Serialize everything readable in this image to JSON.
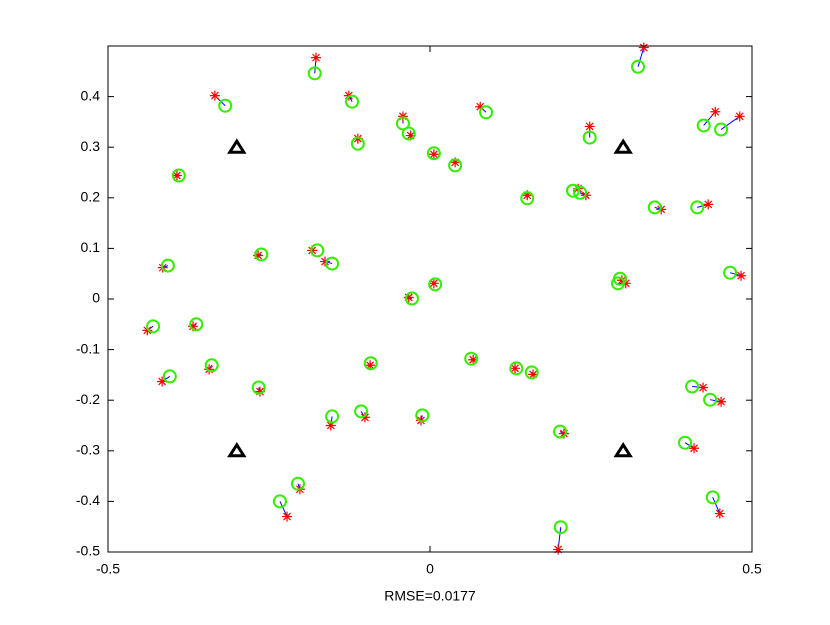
{
  "chart_data": {
    "type": "scatter",
    "xlabel": "RMSE=0.0177",
    "xlim": [
      -0.5,
      0.5
    ],
    "ylim": [
      -0.5,
      0.5
    ],
    "xticks": [
      -0.5,
      0,
      0.5
    ],
    "yticks": [
      -0.5,
      -0.4,
      -0.3,
      -0.2,
      -0.1,
      0,
      0.1,
      0.2,
      0.3,
      0.4
    ],
    "link_color": "#0000ff",
    "series": [
      {
        "marker": "star",
        "color": "#ff0000",
        "x": [
          -0.334,
          -0.177,
          -0.126,
          -0.112,
          -0.042,
          -0.03,
          0.006,
          0.039,
          0.078,
          0.151,
          0.23,
          0.242,
          0.248,
          0.332,
          0.359,
          0.432,
          0.443,
          0.481,
          0.483,
          0.304,
          0.298,
          -0.393,
          -0.415,
          -0.267,
          -0.183,
          -0.163,
          -0.033,
          0.006,
          -0.439,
          -0.368,
          -0.416,
          -0.343,
          -0.264,
          -0.093,
          -0.154,
          -0.101,
          -0.014,
          0.067,
          0.132,
          0.16,
          0.208,
          0.199,
          0.424,
          0.452,
          0.41,
          0.45,
          -0.222,
          -0.202
        ],
        "values": [
          0.402,
          0.477,
          0.402,
          0.317,
          0.361,
          0.323,
          0.286,
          0.27,
          0.38,
          0.205,
          0.218,
          0.205,
          0.341,
          0.497,
          0.177,
          0.187,
          0.37,
          0.361,
          0.046,
          0.031,
          0.037,
          0.244,
          0.062,
          0.086,
          0.096,
          0.074,
          0.003,
          0.031,
          -0.062,
          -0.054,
          -0.163,
          -0.139,
          -0.183,
          -0.131,
          -0.25,
          -0.234,
          -0.24,
          -0.12,
          -0.137,
          -0.149,
          -0.266,
          -0.495,
          -0.175,
          -0.203,
          -0.295,
          -0.424,
          -0.43,
          -0.376
        ]
      },
      {
        "marker": "circle",
        "color": "#33ee00",
        "x": [
          -0.318,
          -0.179,
          -0.121,
          -0.112,
          -0.042,
          -0.033,
          0.006,
          0.039,
          0.087,
          0.151,
          0.222,
          0.233,
          0.248,
          0.323,
          0.349,
          0.415,
          0.425,
          0.452,
          0.466,
          0.292,
          0.295,
          -0.39,
          -0.407,
          -0.262,
          -0.175,
          -0.152,
          -0.028,
          0.008,
          -0.43,
          -0.363,
          -0.404,
          -0.339,
          -0.266,
          -0.092,
          -0.152,
          -0.107,
          -0.012,
          0.064,
          0.134,
          0.158,
          0.202,
          0.203,
          0.407,
          0.435,
          0.396,
          0.439,
          -0.233,
          -0.205
        ],
        "values": [
          0.382,
          0.446,
          0.39,
          0.307,
          0.347,
          0.327,
          0.288,
          0.264,
          0.369,
          0.199,
          0.214,
          0.21,
          0.319,
          0.459,
          0.181,
          0.181,
          0.343,
          0.335,
          0.052,
          0.031,
          0.04,
          0.244,
          0.066,
          0.088,
          0.096,
          0.07,
          0.001,
          0.029,
          -0.054,
          -0.05,
          -0.153,
          -0.131,
          -0.175,
          -0.127,
          -0.232,
          -0.222,
          -0.23,
          -0.118,
          -0.137,
          -0.145,
          -0.262,
          -0.451,
          -0.173,
          -0.199,
          -0.284,
          -0.392,
          -0.4,
          -0.365
        ]
      },
      {
        "marker": "triangle",
        "color": "#000000",
        "x": [
          -0.3,
          0.3,
          -0.3,
          0.3
        ],
        "values": [
          0.3,
          0.3,
          -0.3,
          -0.3
        ]
      }
    ]
  }
}
